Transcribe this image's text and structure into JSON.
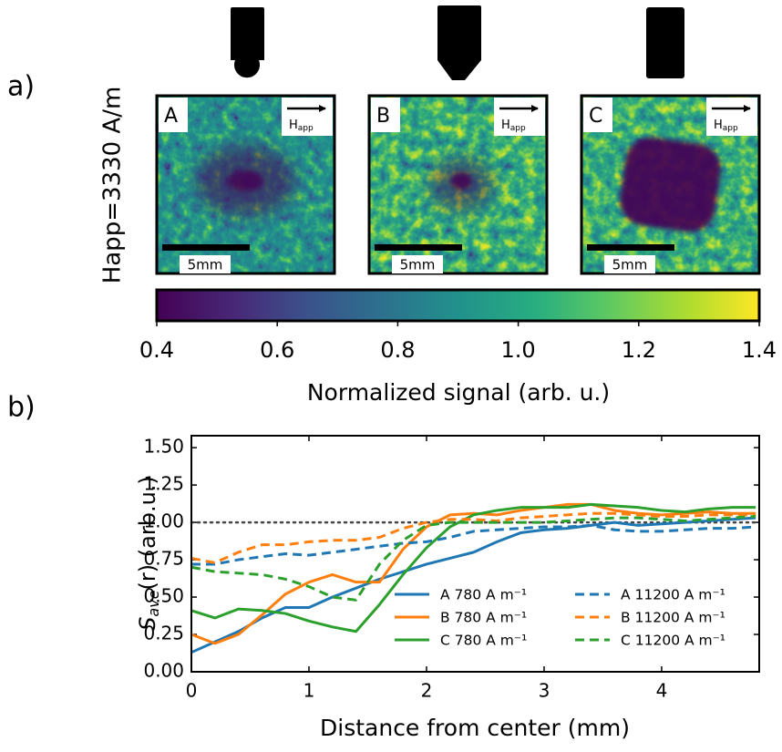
{
  "chart_data": [
    {
      "type": "image-panels",
      "panel_label": "a)",
      "ylabel": "Happ=3330 A/m",
      "panels": [
        {
          "label": "A",
          "field": {
            "symbol": "H",
            "subscript": "app"
          },
          "scale_bar": "5mm"
        },
        {
          "label": "B",
          "field": {
            "symbol": "H",
            "subscript": "app"
          },
          "scale_bar": "5mm"
        },
        {
          "label": "C",
          "field": {
            "symbol": "H",
            "subscript": "app"
          },
          "scale_bar": "5mm"
        }
      ],
      "colorbar": {
        "colormap": "viridis",
        "xlim": [
          0.4,
          1.4
        ],
        "xticks": [
          0.4,
          0.6,
          0.8,
          {
            "value": 1,
            "label": "1.0"
          },
          1.2,
          1.4
        ],
        "xlabel": "Normalized signal (arb. u.)"
      }
    },
    {
      "type": "line",
      "panel_label": "b)",
      "xlabel": "Distance from center (mm)",
      "ylabel": {
        "symbol": "S",
        "subscript": "ave",
        "text": "(r) (arb.u.)"
      },
      "x": [
        0,
        0.2,
        0.4,
        0.6,
        0.8,
        1.0,
        1.2,
        1.4,
        1.6,
        1.8,
        2.0,
        2.2,
        2.4,
        2.6,
        2.8,
        3.0,
        3.2,
        3.4,
        3.6,
        3.8,
        4.0,
        4.2,
        4.4,
        4.6,
        4.8
      ],
      "xlim": [
        0,
        4.83
      ],
      "xticks": [
        0,
        1,
        2,
        3,
        4
      ],
      "ylim": [
        0,
        1.58
      ],
      "yticks": [
        {
          "value": 0,
          "label": "0.00"
        },
        {
          "value": 0.25,
          "label": "0.25"
        },
        {
          "value": 0.5,
          "label": "0.50"
        },
        {
          "value": 0.75,
          "label": "0.75"
        },
        {
          "value": 1,
          "label": "1.00"
        },
        {
          "value": 1.25,
          "label": "1.25"
        },
        {
          "value": 1.5,
          "label": "1.50"
        }
      ],
      "hline": 1,
      "hline_color": "#444444",
      "legend": "lower right",
      "legend_columns": 2,
      "series": [
        {
          "name": "A 780 A m⁻¹",
          "color": "#1f77b4",
          "dashed": false,
          "values": [
            0.13,
            0.2,
            0.27,
            0.36,
            0.43,
            0.43,
            0.5,
            0.56,
            0.62,
            0.67,
            0.72,
            0.76,
            0.8,
            0.87,
            0.93,
            0.95,
            0.96,
            0.98,
            1.0,
            0.98,
            0.99,
            1.0,
            1.01,
            1.02,
            1.03
          ]
        },
        {
          "name": "B 780 A m⁻¹",
          "color": "#ff7f0e",
          "dashed": false,
          "values": [
            0.25,
            0.19,
            0.25,
            0.38,
            0.52,
            0.6,
            0.65,
            0.6,
            0.6,
            0.82,
            0.97,
            1.05,
            1.06,
            1.05,
            1.08,
            1.1,
            1.12,
            1.12,
            1.08,
            1.06,
            1.05,
            1.06,
            1.07,
            1.06,
            1.06
          ]
        },
        {
          "name": "C 780 A m⁻¹",
          "color": "#2ca02c",
          "dashed": false,
          "values": [
            0.41,
            0.36,
            0.42,
            0.41,
            0.39,
            0.34,
            0.3,
            0.27,
            0.45,
            0.65,
            0.83,
            0.97,
            1.05,
            1.08,
            1.1,
            1.1,
            1.1,
            1.12,
            1.11,
            1.1,
            1.08,
            1.07,
            1.09,
            1.1,
            1.1
          ]
        },
        {
          "name": "A 11200 A m⁻¹",
          "color": "#1f77b4",
          "dashed": true,
          "values": [
            0.72,
            0.72,
            0.75,
            0.77,
            0.79,
            0.78,
            0.8,
            0.82,
            0.84,
            0.86,
            0.87,
            0.9,
            0.94,
            0.95,
            0.96,
            0.97,
            0.97,
            0.98,
            0.95,
            0.94,
            0.94,
            0.95,
            0.96,
            0.96,
            0.97
          ]
        },
        {
          "name": "B 11200 A m⁻¹",
          "color": "#ff7f0e",
          "dashed": true,
          "values": [
            0.76,
            0.73,
            0.8,
            0.85,
            0.85,
            0.87,
            0.88,
            0.88,
            0.9,
            0.96,
            1.0,
            1.02,
            1.02,
            1.01,
            1.03,
            1.04,
            1.05,
            1.06,
            1.06,
            1.05,
            1.04,
            1.04,
            1.05,
            1.05,
            1.05
          ]
        },
        {
          "name": "C 11200 A m⁻¹",
          "color": "#2ca02c",
          "dashed": true,
          "values": [
            0.7,
            0.67,
            0.66,
            0.65,
            0.62,
            0.57,
            0.5,
            0.48,
            0.72,
            0.88,
            0.98,
            1.0,
            1.0,
            1.0,
            1.0,
            1.0,
            1.01,
            1.02,
            1.03,
            1.03,
            1.02,
            1.01,
            1.02,
            1.03,
            1.04
          ]
        }
      ]
    }
  ]
}
